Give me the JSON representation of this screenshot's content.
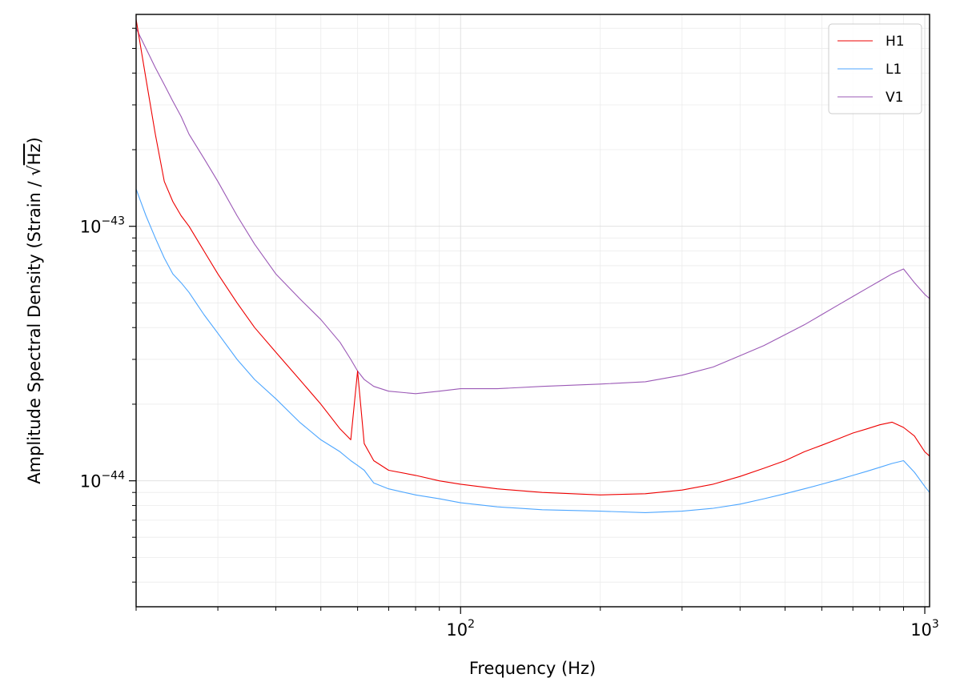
{
  "chart_data": {
    "type": "line",
    "title": "",
    "xlabel": "Frequency (Hz)",
    "ylabel": "Amplitude Spectral Density (Strain / √Hz)",
    "ylabel_main": "Amplitude Spectral Density (Strain / ",
    "ylabel_radical": "√",
    "ylabel_radicand": "Hz",
    "ylabel_close": ")",
    "xscale": "log",
    "yscale": "log",
    "xlim": [
      20,
      1024
    ],
    "ylim": [
      3.2e-45,
      6.8e-43
    ],
    "grid": true,
    "legend_position": "top-right",
    "x_major_ticks": [
      {
        "value": 100,
        "base": "10",
        "exp": "2"
      },
      {
        "value": 1000,
        "base": "10",
        "exp": "3"
      }
    ],
    "y_major_ticks": [
      {
        "value": 1e-44,
        "base": "10",
        "exp": "−44"
      },
      {
        "value": 1e-43,
        "base": "10",
        "exp": "−43"
      }
    ],
    "series": [
      {
        "name": "H1",
        "color": "#ee0000",
        "x": [
          20,
          21,
          22,
          23,
          24,
          25,
          26,
          28,
          30,
          33,
          36,
          40,
          45,
          50,
          55,
          58,
          60,
          62,
          65,
          70,
          80,
          90,
          100,
          120,
          150,
          200,
          250,
          300,
          350,
          400,
          450,
          500,
          550,
          600,
          650,
          700,
          750,
          800,
          850,
          900,
          950,
          1000,
          1024
        ],
        "y": [
          6.5e-43,
          3.8e-43,
          2.3e-43,
          1.5e-43,
          1.25e-43,
          1.1e-43,
          1e-43,
          8e-44,
          6.5e-44,
          5e-44,
          4e-44,
          3.2e-44,
          2.5e-44,
          2e-44,
          1.6e-44,
          1.45e-44,
          2.7e-44,
          1.4e-44,
          1.2e-44,
          1.1e-44,
          1.05e-44,
          1e-44,
          9.7e-45,
          9.3e-45,
          9e-45,
          8.8e-45,
          8.9e-45,
          9.2e-45,
          9.7e-45,
          1.04e-44,
          1.12e-44,
          1.2e-44,
          1.3e-44,
          1.38e-44,
          1.46e-44,
          1.54e-44,
          1.6e-44,
          1.66e-44,
          1.7e-44,
          1.62e-44,
          1.5e-44,
          1.3e-44,
          1.25e-44
        ]
      },
      {
        "name": "L1",
        "color": "#4da6ff",
        "x": [
          20,
          21,
          22,
          23,
          24,
          25,
          26,
          28,
          30,
          33,
          36,
          40,
          45,
          50,
          55,
          58,
          60,
          62,
          65,
          70,
          80,
          90,
          100,
          120,
          150,
          200,
          250,
          300,
          350,
          400,
          450,
          500,
          550,
          600,
          650,
          700,
          750,
          800,
          850,
          900,
          950,
          1000,
          1024
        ],
        "y": [
          1.4e-43,
          1.1e-43,
          9e-44,
          7.5e-44,
          6.5e-44,
          6e-44,
          5.5e-44,
          4.5e-44,
          3.8e-44,
          3e-44,
          2.5e-44,
          2.1e-44,
          1.7e-44,
          1.45e-44,
          1.3e-44,
          1.2e-44,
          1.15e-44,
          1.1e-44,
          9.8e-45,
          9.3e-45,
          8.8e-45,
          8.5e-45,
          8.2e-45,
          7.9e-45,
          7.7e-45,
          7.6e-45,
          7.5e-45,
          7.6e-45,
          7.8e-45,
          8.1e-45,
          8.5e-45,
          8.9e-45,
          9.3e-45,
          9.7e-45,
          1.01e-44,
          1.05e-44,
          1.09e-44,
          1.13e-44,
          1.17e-44,
          1.2e-44,
          1.08e-44,
          9.5e-45,
          9e-45
        ]
      },
      {
        "name": "V1",
        "color": "#9b59b6",
        "x": [
          20,
          21,
          22,
          23,
          24,
          25,
          26,
          28,
          30,
          33,
          36,
          40,
          45,
          50,
          55,
          58,
          60,
          62,
          65,
          70,
          80,
          90,
          100,
          120,
          150,
          200,
          250,
          300,
          350,
          400,
          450,
          500,
          550,
          600,
          650,
          700,
          750,
          800,
          850,
          900,
          950,
          1000,
          1024
        ],
        "y": [
          6e-43,
          5e-43,
          4.2e-43,
          3.6e-43,
          3.1e-43,
          2.7e-43,
          2.3e-43,
          1.85e-43,
          1.5e-43,
          1.1e-43,
          8.5e-44,
          6.5e-44,
          5.2e-44,
          4.3e-44,
          3.5e-44,
          3e-44,
          2.7e-44,
          2.5e-44,
          2.35e-44,
          2.25e-44,
          2.2e-44,
          2.25e-44,
          2.3e-44,
          2.3e-44,
          2.35e-44,
          2.4e-44,
          2.45e-44,
          2.6e-44,
          2.8e-44,
          3.1e-44,
          3.4e-44,
          3.75e-44,
          4.1e-44,
          4.5e-44,
          4.9e-44,
          5.3e-44,
          5.7e-44,
          6.1e-44,
          6.5e-44,
          6.8e-44,
          6e-44,
          5.4e-44,
          5.2e-44
        ]
      }
    ]
  }
}
